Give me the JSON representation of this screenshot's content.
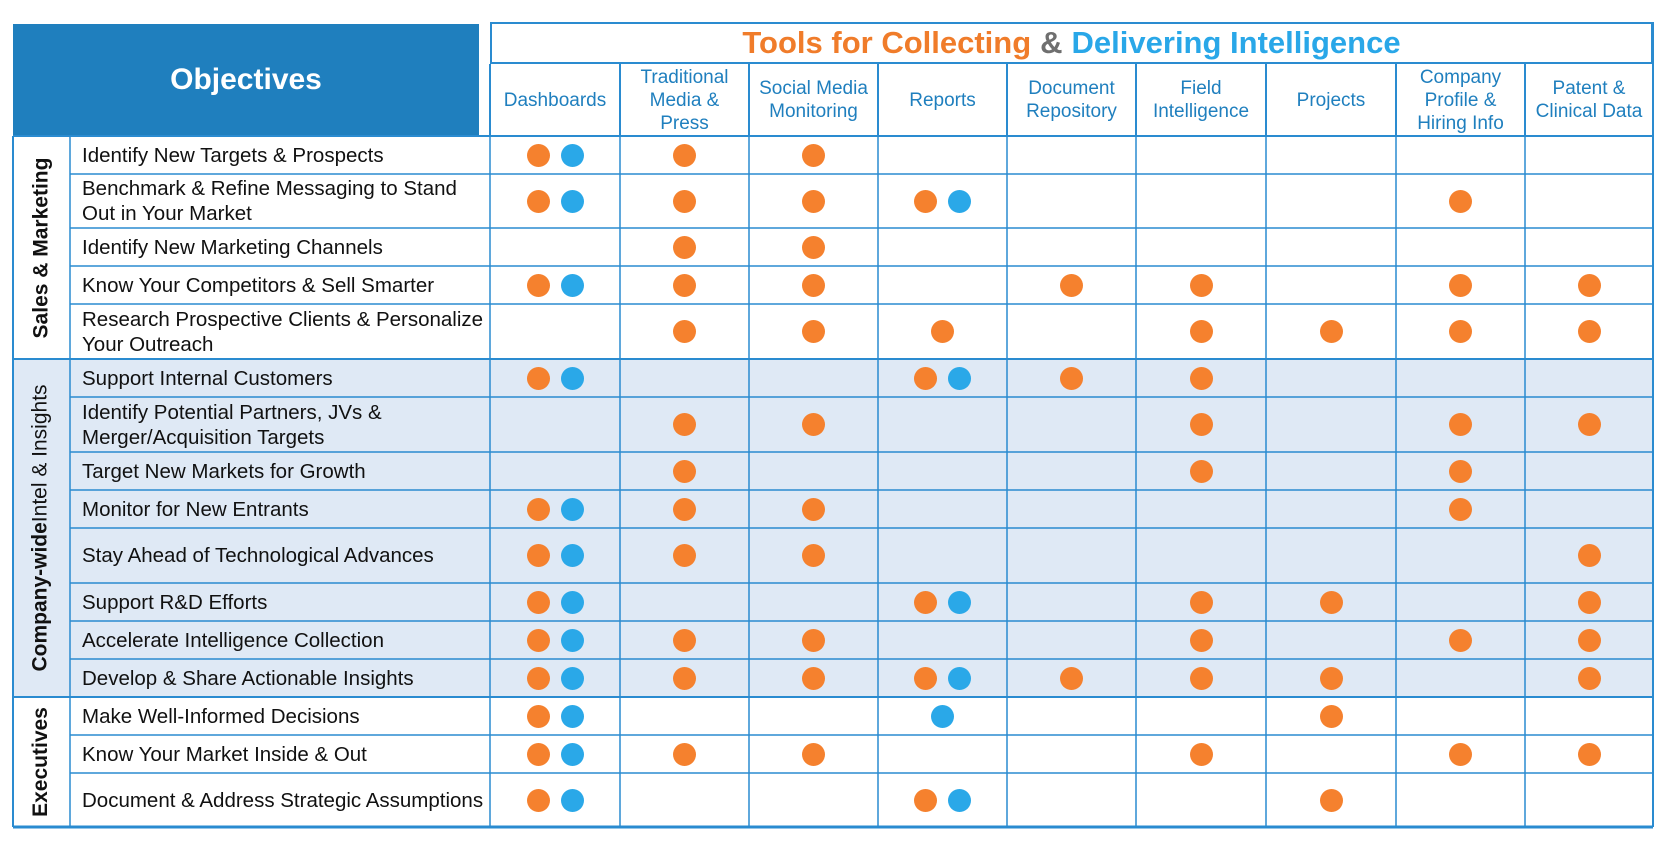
{
  "objectives_header": "Objectives",
  "title": {
    "part1": "Tools for Collecting",
    "amp": "&",
    "part2": "Delivering Intelligence"
  },
  "colors": {
    "header_blue": "#1f7fbe",
    "title_orange": "#f07c2a",
    "title_blue": "#29a7e8",
    "title_gray": "#6f6f6f",
    "orange_dot": "#f5812e",
    "blue_dot": "#2aa8e8",
    "band_fill": "#dfe9f5",
    "grid_line": "#2a8bd0"
  },
  "columns": [
    "Dashboards",
    "Traditional\nMedia & Press",
    "Social Media\nMonitoring",
    "Reports",
    "Document\nRepository",
    "Field\nIntelligence",
    "Projects",
    "Company\nProfile &\nHiring Info",
    "Patent &\nClinical Data"
  ],
  "groups": [
    {
      "label_bold": "Sales & Marketing",
      "label_regular": "",
      "shaded": false,
      "rows": [
        {
          "label": "Identify New Targets & Prospects",
          "cells": [
            "ob",
            "o",
            "o",
            "",
            "",
            "",
            "",
            "",
            ""
          ]
        },
        {
          "label": "Benchmark & Refine Messaging to Stand Out in Your Market",
          "cells": [
            "ob",
            "o",
            "o",
            "ob",
            "",
            "",
            "",
            "o",
            ""
          ]
        },
        {
          "label": "Identify New Marketing Channels",
          "cells": [
            "",
            "o",
            "o",
            "",
            "",
            "",
            "",
            "",
            ""
          ]
        },
        {
          "label": "Know Your Competitors & Sell Smarter",
          "cells": [
            "ob",
            "o",
            "o",
            "",
            "o",
            "o",
            "",
            "o",
            "o"
          ]
        },
        {
          "label": "Research Prospective Clients & Personalize Your Outreach",
          "cells": [
            "",
            "o",
            "o",
            "o",
            "",
            "o",
            "o",
            "o",
            "o"
          ]
        }
      ]
    },
    {
      "label_bold": "Company-wide",
      "label_regular": "Intel & Insights",
      "shaded": true,
      "rows": [
        {
          "label": "Support Internal Customers",
          "cells": [
            "ob",
            "",
            "",
            "ob",
            "o",
            "o",
            "",
            "",
            ""
          ]
        },
        {
          "label": "Identify Potential Partners, JVs & Merger/Acquisition Targets",
          "cells": [
            "",
            "o",
            "o",
            "",
            "",
            "o",
            "",
            "o",
            "o"
          ]
        },
        {
          "label": "Target New Markets for Growth",
          "cells": [
            "",
            "o",
            "",
            "",
            "",
            "o",
            "",
            "o",
            ""
          ]
        },
        {
          "label": "Monitor for New Entrants",
          "cells": [
            "ob",
            "o",
            "o",
            "",
            "",
            "",
            "",
            "o",
            ""
          ]
        },
        {
          "label": "Stay Ahead of Technological Advances",
          "cells": [
            "ob",
            "o",
            "o",
            "",
            "",
            "",
            "",
            "",
            "o"
          ]
        },
        {
          "label": "Support R&D Efforts",
          "cells": [
            "ob",
            "",
            "",
            "ob",
            "",
            "o",
            "o",
            "",
            "o"
          ]
        },
        {
          "label": "Accelerate Intelligence Collection",
          "cells": [
            "ob",
            "o",
            "o",
            "",
            "",
            "o",
            "",
            "o",
            "o"
          ]
        },
        {
          "label": "Develop & Share Actionable Insights",
          "cells": [
            "ob",
            "o",
            "o",
            "ob",
            "o",
            "o",
            "o",
            "",
            "o"
          ]
        }
      ]
    },
    {
      "label_bold": "Executives",
      "label_regular": "",
      "shaded": false,
      "rows": [
        {
          "label": "Make Well-Informed Decisions",
          "cells": [
            "ob",
            "",
            "",
            "b",
            "",
            "",
            "o",
            "",
            ""
          ]
        },
        {
          "label": "Know Your Market Inside & Out",
          "cells": [
            "ob",
            "o",
            "o",
            "",
            "",
            "o",
            "",
            "o",
            "o"
          ]
        },
        {
          "label": "Document & Address Strategic Assumptions",
          "cells": [
            "ob",
            "",
            "",
            "ob",
            "",
            "",
            "o",
            "",
            ""
          ]
        }
      ]
    }
  ]
}
